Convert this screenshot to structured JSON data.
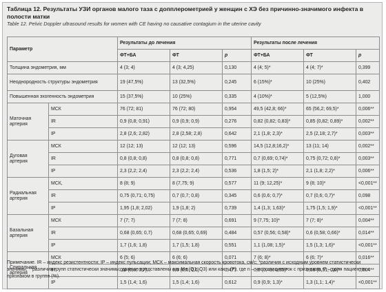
{
  "title": "Таблица 12. Результаты УЗИ органов малого таза с допплерометрией у женщин с ХЭ без причинно-значимого инфекта в полости матки",
  "subtitle": "Table 12. Pelvic Doppler ultrasound results for women with CE having no causative contagium in the uterine cavity",
  "header": {
    "param": "Параметр",
    "before": "Результаты до лечения",
    "after": "Результаты после лечения",
    "col_ft_ba": "ФТ+БА",
    "col_ft": "ФТ",
    "col_p": "p"
  },
  "rows_simple": [
    {
      "label": "Толщина эндометрия, мм",
      "b1": "4 (3; 4)",
      "b2": "4 (3; 4,25)",
      "bp": "0,130",
      "a1": "4 (4; 5)*",
      "a2": "4 (4; 7)*",
      "ap": "0,399"
    },
    {
      "label": "Неоднородность структуры эндометрия",
      "b1": "19 (47,5%)",
      "b2": "13 (32,5%)",
      "bp": "0,245",
      "a1": "6 (15%)*",
      "a2": "10 (25%)",
      "ap": "0,402"
    },
    {
      "label": "Повышенная эхогенность эндометрия",
      "b1": "15 (37,5%)",
      "b2": "10 (25%)",
      "bp": "0,335",
      "a1": "4 (10%)*",
      "a2": "5 (12,5%)",
      "ap": "1,000"
    }
  ],
  "groups": [
    {
      "name": "Маточная артерия",
      "rows": [
        {
          "idx": "МСК",
          "b1": "76 (72; 81)",
          "b2": "76 (72; 80)",
          "bp": "0,954",
          "a1": "49,5 (42,8; 66)*",
          "a2": "65 (56,2; 69,5)*",
          "ap": "0,006**"
        },
        {
          "idx": "IR",
          "b1": "0,9 (0,8; 0,91)",
          "b2": "0,9 (0,9; 0,9)",
          "bp": "0,276",
          "a1": "0,82 (0,82; 0,83)*",
          "a2": "0,85 (0,82; 0,89)*",
          "ap": "0,002**"
        },
        {
          "idx": "IP",
          "b1": "2,8 (2,6; 2,82)",
          "b2": "2,8 (2,58; 2,8)",
          "bp": "0,642",
          "a1": "2,1 (1,8; 2,3)*",
          "a2": "2,5 (2,18; 2,7)*",
          "ap": "0,003**"
        }
      ]
    },
    {
      "name": "Дуговая артерия",
      "rows": [
        {
          "idx": "МСК",
          "b1": "12 (12; 13)",
          "b2": "12 (12; 13)",
          "bp": "0,596",
          "a1": "14,5 (12,8;16,2)*",
          "a2": "13 (11; 14)",
          "ap": "0,002**"
        },
        {
          "idx": "IR",
          "b1": "0,8 (0,8; 0,8)",
          "b2": "0,8 (0,8; 0,8)",
          "bp": "0,771",
          "a1": "0,7 (0,69; 0,74)*",
          "a2": "0,75 (0,72; 0,8)*",
          "ap": "0,003**"
        },
        {
          "idx": "IP",
          "b1": "2,3 (2,2; 2,4)",
          "b2": "2,3 (2,2; 2,4)",
          "bp": "0,536",
          "a1": "1,8 (1,5; 2)*",
          "a2": "2,1 (1,8; 2,2)*",
          "ap": "0,006**"
        }
      ]
    },
    {
      "name": "Радиальная артерия",
      "rows": [
        {
          "idx": "МСК,",
          "b1": "8 (8; 9)",
          "b2": "8 (7,75; 9)",
          "bp": "0,577",
          "a1": "11 (9; 12,25)*",
          "a2": "9 (8; 10)*",
          "ap": "<0,001**"
        },
        {
          "idx": "IR",
          "b1": "0,75 (0,71; 0,75)",
          "b2": "0,7 (0,7; 0,8)",
          "bp": "0,345",
          "a1": "0,6 (0,6; 0,7)*",
          "a2": "0,7 (0,6; 0,7)*",
          "ap": "0,098"
        },
        {
          "idx": "IP",
          "b1": "1,95 (1,8; 2,02)",
          "b2": "1,9 (1,8; 2)",
          "bp": "0,739",
          "a1": "1,4 (1,3; 1,63)*",
          "a2": "1,75 (1,5; 1,9)*",
          "ap": "<0,001**"
        }
      ]
    },
    {
      "name": "Базальная артерия",
      "rows": [
        {
          "idx": "МСК",
          "b1": "7 (7; 7)",
          "b2": "7 (7; 8)",
          "bp": "0,691",
          "a1": "9 (7,75; 10)*",
          "a2": "7 (7; 8)*",
          "ap": "0,004**"
        },
        {
          "idx": "IR",
          "b1": "0,68 (0,65; 0,7)",
          "b2": "0,68 (0,65; 0,69)",
          "bp": "0,484",
          "a1": "0,57 (0,56; 0,58)*",
          "a2": "0,6 (0,58; 0,66)*",
          "ap": "0,014**"
        },
        {
          "idx": "IP",
          "b1": "1,7 (1,6; 1,8)",
          "b2": "1,7 (1,5; 1,8)",
          "bp": "0,551",
          "a1": "1,1 (1,08; 1,5)*",
          "a2": "1,5 (1,3; 1,6)*",
          "ap": "<0,001**"
        }
      ]
    },
    {
      "name": "Спиральная артерия",
      "rows": [
        {
          "idx": "МСК",
          "b1": "6 (5; 6)",
          "b2": "6 (6; 6)",
          "bp": "0,071",
          "a1": "7 (6; 8)*",
          "a2": "6 (6; 7)*",
          "ap": "0,016**"
        },
        {
          "idx": "IR",
          "b1": "0,6 (0,6; 0,7)",
          "b2": "0,6 (0,6; 0,6)",
          "bp": "0,477",
          "a1": "0,5 (0,49; 0,55)*",
          "a2": "0,58 (0,51; 0,6)*",
          "ap": "0,004**"
        },
        {
          "idx": "IP",
          "b1": "1,5 (1,4; 1,6)",
          "b2": "1,5 (1,4; 1,6)",
          "bp": "0,612",
          "a1": "0,9 (0,9; 1,3)*",
          "a2": "1,3 (1,1; 1,4)*",
          "ap": "<0,001**"
        }
      ]
    }
  ],
  "note": "Примечание. IR – индекс резистентности; IP – индекс пульсации; МСК – максимальная скорость кровотока, см/с; *различия с исходным уровнем статистически значимы; **различия групп статистически значимы; данные представлены как Me (Q1; Q3) или как n (P), где n – число пациенток с признаком, P – доля пациенток с признаком в группе (%)."
}
